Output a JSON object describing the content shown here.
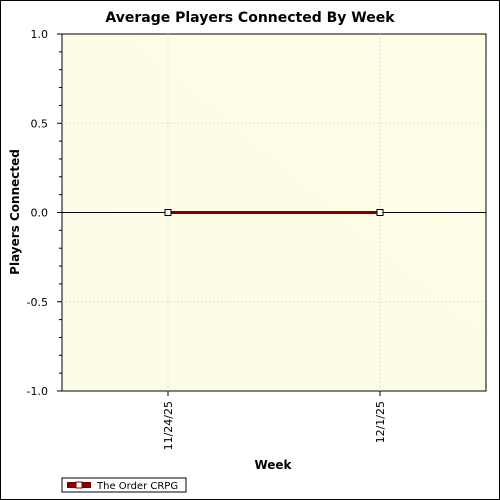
{
  "chart_data": {
    "type": "line",
    "title": "Average Players Connected By Week",
    "xlabel": "Week",
    "ylabel": "Players Connected",
    "categories": [
      "11/24/25",
      "12/1/25"
    ],
    "series": [
      {
        "name": "The Order CRPG",
        "values": [
          0,
          0
        ],
        "color": "#800000"
      }
    ],
    "ylim": [
      -1.0,
      1.0
    ],
    "y_ticks": [
      "-1.0",
      "-0.5",
      "0.0",
      "0.5",
      "1.0"
    ],
    "grid": true,
    "legend_position": "bottom-left",
    "colors": {
      "plot_background_start": "#fbfbe6",
      "plot_background_end": "#ffffe8",
      "grid": "#c8c8b4",
      "marker_fill": "#ffffff"
    }
  }
}
